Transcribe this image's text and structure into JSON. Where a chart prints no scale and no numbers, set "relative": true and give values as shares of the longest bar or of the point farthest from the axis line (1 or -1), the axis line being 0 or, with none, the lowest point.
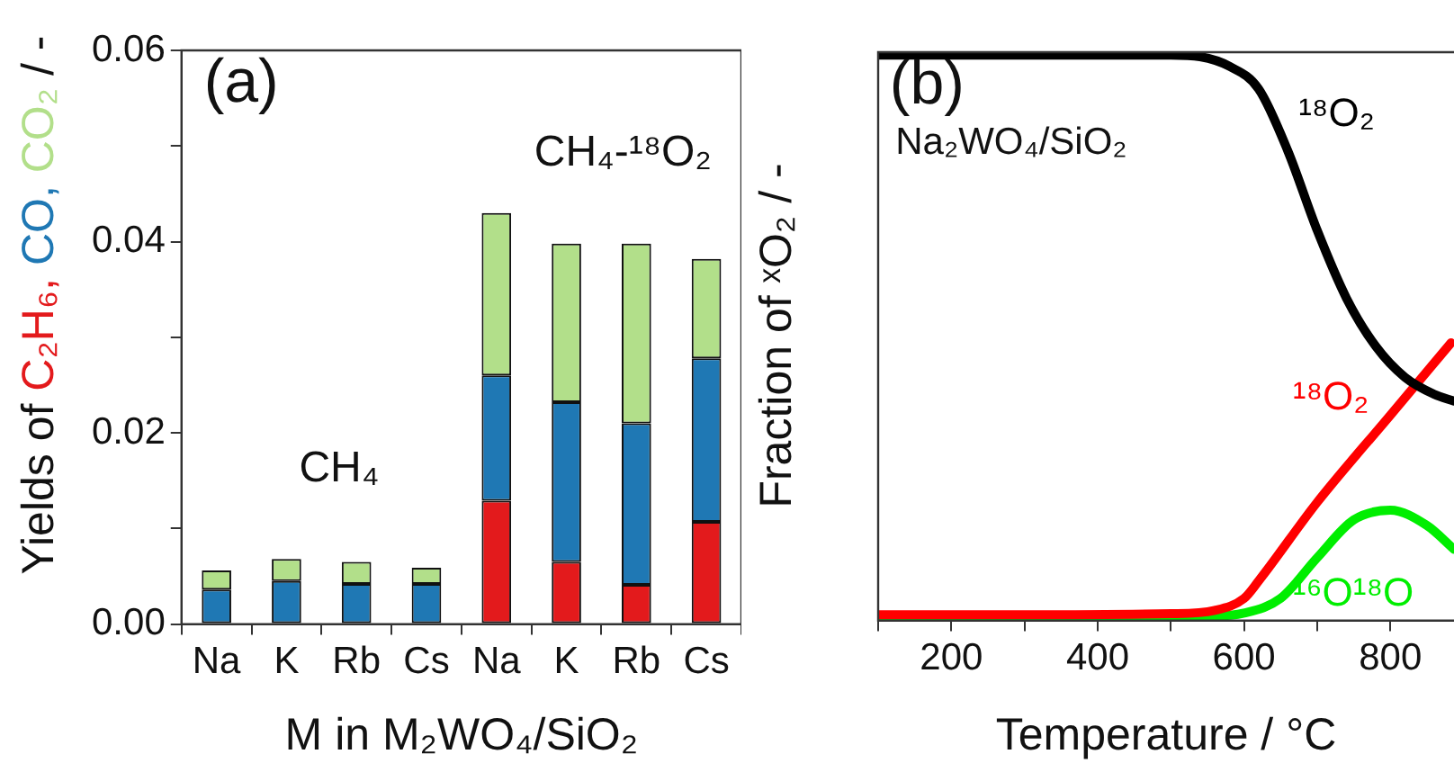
{
  "chart_data": [
    {
      "type": "bar",
      "stacked": true,
      "xlabel": "M in M₂WO₄/SiO₂",
      "ylabel": "Yields of C₂H₆, CO, CO₂ / -",
      "categories": [
        "Na",
        "K",
        "Rb",
        "Cs",
        "Na",
        "K",
        "Rb",
        "Cs"
      ],
      "series": [
        {
          "color": "#e31a1c",
          "values": [
            0,
            0,
            0,
            0,
            0.0129,
            0.0065,
            0.0041,
            0.0107
          ]
        },
        {
          "color": "#1f78b4",
          "values": [
            0.0036,
            0.0045,
            0.0042,
            0.0042,
            0.0131,
            0.0167,
            0.0169,
            0.0171
          ]
        },
        {
          "color": "#b2df8a",
          "values": [
            0.002,
            0.0023,
            0.0023,
            0.0017,
            0.017,
            0.0166,
            0.0188,
            0.0104
          ]
        }
      ],
      "ylim": [
        0,
        0.06
      ],
      "yticks": [
        {
          "value": 0,
          "label": "0.00"
        },
        {
          "value": 0.01,
          "label": null
        },
        {
          "value": 0.02,
          "label": "0.02"
        },
        {
          "value": 0.03,
          "label": null
        },
        {
          "value": 0.04,
          "label": "0.04"
        },
        {
          "value": 0.05,
          "label": null
        },
        {
          "value": 0.06,
          "label": "0.06"
        }
      ],
      "annotations": [
        "(a)",
        "CH₄",
        "CH₄-¹⁸O₂"
      ]
    },
    {
      "type": "line",
      "relative": true,
      "xlabel": "Temperature / °C",
      "ylabel": "Fraction of ˣO₂ / -",
      "xlim": [
        100,
        887
      ],
      "xticks": [
        {
          "value": 100,
          "label": null
        },
        200,
        {
          "value": 300,
          "label": null
        },
        400,
        {
          "value": 500,
          "label": null
        },
        600,
        {
          "value": 700,
          "label": null
        },
        800
      ],
      "series": [
        {
          "name": "¹⁸O₂",
          "color": "#000000",
          "x": [
            100,
            300,
            500,
            540,
            580,
            620,
            660,
            700,
            740,
            780,
            820,
            860,
            887
          ],
          "values": [
            1,
            1,
            1,
            0.997,
            0.98,
            0.94,
            0.83,
            0.69,
            0.57,
            0.485,
            0.43,
            0.4,
            0.388
          ]
        },
        {
          "name": "¹⁸O₂",
          "color": "#ff0000",
          "x": [
            100,
            300,
            500,
            560,
            600,
            620,
            700,
            800,
            883
          ],
          "values": [
            0.01,
            0.01,
            0.012,
            0.018,
            0.039,
            0.07,
            0.209,
            0.363,
            0.491
          ]
        },
        {
          "name": "¹⁶O¹⁸O",
          "color": "#00ee00",
          "x": [
            100,
            300,
            500,
            560,
            600,
            650,
            700,
            750,
            800,
            850,
            887
          ],
          "values": [
            0.008,
            0.008,
            0.008,
            0.008,
            0.013,
            0.039,
            0.111,
            0.178,
            0.195,
            0.168,
            0.126
          ]
        }
      ],
      "annotations": [
        "(b)",
        "Na₂WO₄/SiO₂"
      ]
    }
  ]
}
